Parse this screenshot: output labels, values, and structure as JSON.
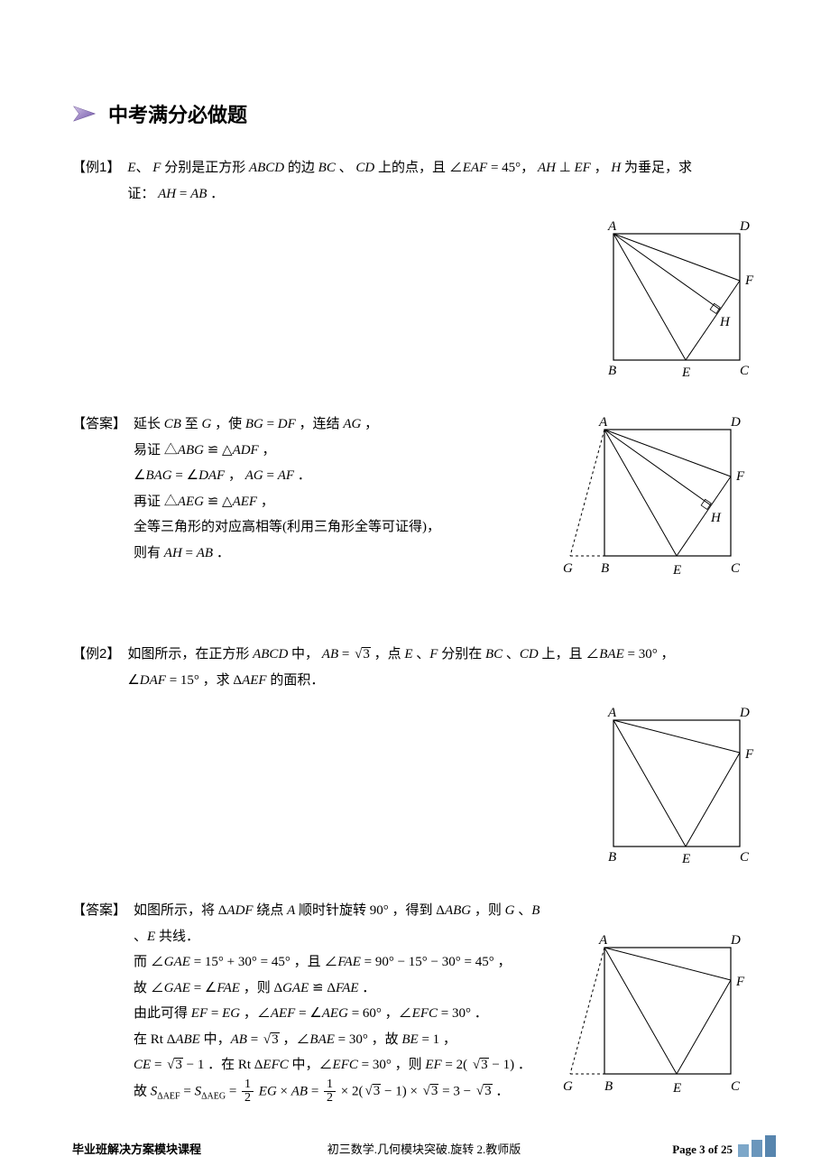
{
  "section": {
    "title": "中考满分必做题"
  },
  "arrow_colors": {
    "fill_light": "#bda7d6",
    "fill_dark": "#4a2f7b",
    "stop1": "#d1c2e6",
    "stop2": "#6f52a8"
  },
  "ex1": {
    "label": "【例1】",
    "line1_a": "、",
    "line1_b": " 分别是正方形 ",
    "line1_c": " 的边 ",
    "line1_d": " 、",
    "line1_e": " 上的点，且 ",
    "line1_f": "∠",
    "line1_g": " = 45°，",
    "line1_h": " ⊥ ",
    "line1_i": " ，",
    "line1_j": " 为垂足，求",
    "line2_a": "证：",
    "line2_b": " = ",
    "line2_c": " ．",
    "E": "E",
    "F": "F",
    "ABCD": "ABCD",
    "BC": "BC",
    "CD": "CD",
    "EAF": "EAF",
    "AH": "AH",
    "EF": "EF",
    "H": "H",
    "AB": "AB"
  },
  "ans1": {
    "label": "【答案】",
    "l1_a": "延长 ",
    "l1_b": " 至 ",
    "l1_c": " ，使 ",
    "l1_d": " = ",
    "l1_e": " ，连结 ",
    "l1_f": " ，",
    "l2_a": "易证 △",
    "l2_b": " ≌ △",
    "l2_c": " ，",
    "l3_a": "∠",
    "l3_b": " = ∠",
    "l3_c": " ，",
    "l3_d": " = ",
    "l3_e": " ．",
    "l4_a": "再证 △",
    "l4_b": " ≌ △",
    "l4_c": " ，",
    "l5": "全等三角形的对应高相等(利用三角形全等可证得)，",
    "l6_a": "则有 ",
    "l6_b": " = ",
    "l6_c": " ．",
    "CB": "CB",
    "G": "G",
    "BG": "BG",
    "DF": "DF",
    "AG": "AG",
    "ABG": "ABG",
    "ADF": "ADF",
    "BAG": "BAG",
    "DAF": "DAF",
    "AF": "AF",
    "AEG": "AEG",
    "AEF": "AEF",
    "AH": "AH",
    "AB": "AB"
  },
  "ex2": {
    "label": "【例2】",
    "l1_a": "如图所示，在正方形 ",
    "l1_b": " 中，",
    "l1_c": " = ",
    "l1_d": " ，点 ",
    "l1_e": " 、",
    "l1_f": " 分别在 ",
    "l1_g": " 、",
    "l1_h": " 上，且 ∠",
    "l1_i": " = 30° ，",
    "l2_a": "∠",
    "l2_b": " = 15° ，求 Δ",
    "l2_c": " 的面积．",
    "ABCD": "ABCD",
    "AB": "AB",
    "sqrt3": "3",
    "E": "E",
    "F": "F",
    "BC": "BC",
    "CD": "CD",
    "BAE": "BAE",
    "DAF": "DAF",
    "AEF": "AEF"
  },
  "ans2": {
    "label": "【答案】",
    "l1_a": "如图所示，将 Δ",
    "l1_b": " 绕点 ",
    "l1_c": " 顺时针旋转 90° ，得到 Δ",
    "l1_d": " ，则 ",
    "l1_e": " 、",
    "l1_f": " 、",
    "l1_g": " 共线．",
    "l2_a": "而 ∠",
    "l2_b": " = 15° + 30° = 45° ，且 ∠",
    "l2_c": " = 90° − 15° − 30° = 45° ，",
    "l3_a": "故 ∠",
    "l3_b": " = ∠",
    "l3_c": " ，则 Δ",
    "l3_d": " ≌ Δ",
    "l3_e": " ．",
    "l4_a": "由此可得 ",
    "l4_b": " = ",
    "l4_c": " ，∠",
    "l4_d": " = ∠",
    "l4_e": " = 60° ，∠",
    "l4_f": " = 30° ．",
    "l5_a": "在 Rt Δ",
    "l5_b": " 中，",
    "l5_c": " = ",
    "l5_d": " ，∠",
    "l5_e": " = 30° ，故 ",
    "l5_f": " = 1 ，",
    "l6_a": "",
    "l6_b": " = ",
    "l6_c": " − 1 ．在 Rt Δ",
    "l6_d": " 中，∠",
    "l6_e": " = 30° ，则 ",
    "l6_f": " = 2(",
    "l6_g": " − 1) ．",
    "l7_a": "故 ",
    "l7_b": " = ",
    "ADF": "ADF",
    "A": "A",
    "ABG": "ABG",
    "G": "G",
    "B": "B",
    "E": "E",
    "GAE": "GAE",
    "FAE": "FAE",
    "EF": "EF",
    "EG": "EG",
    "AEF": "AEF",
    "AEG": "AEG",
    "EFC": "EFC",
    "ABE": "ABE",
    "AB": "AB",
    "sqrt3": "3",
    "BAE": "BAE",
    "BE": "BE",
    "CE": "CE",
    "S": "S",
    "dAEF": "ΔAEF",
    "dAEG": "ΔAEG",
    "half": "1",
    "half2": "2"
  },
  "figs": {
    "labels": {
      "A": "A",
      "B": "B",
      "C": "C",
      "D": "D",
      "E": "E",
      "F": "F",
      "G": "G",
      "H": "H"
    }
  },
  "footer": {
    "left": "毕业班解决方案模块课程",
    "center": "初三数学.几何模块突破.旋转 2.教师版",
    "right_text": "Page 3 of 25",
    "bars": {
      "colors": [
        "#7da7c9",
        "#6a96bc",
        "#5785ae"
      ],
      "heights": [
        14,
        19,
        24
      ]
    }
  }
}
